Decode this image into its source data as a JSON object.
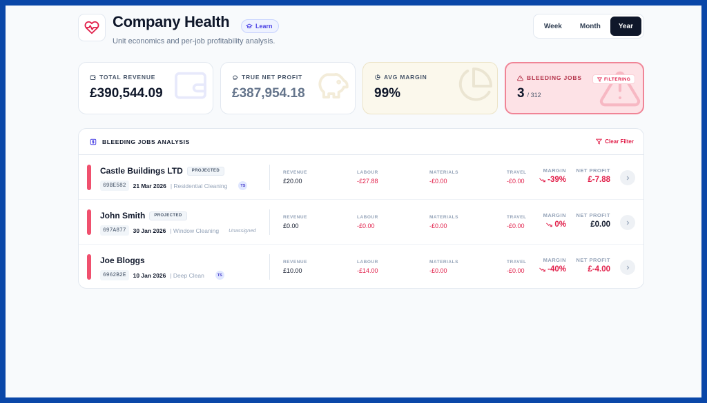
{
  "header": {
    "title": "Company Health",
    "learn_label": "Learn",
    "subtitle": "Unit economics and per-job profitability analysis.",
    "periods": [
      "Week",
      "Month",
      "Year"
    ],
    "active_period": "Year"
  },
  "cards": {
    "total_revenue": {
      "label": "TOTAL REVENUE",
      "value": "£390,544.09"
    },
    "net_profit": {
      "label": "TRUE NET PROFIT",
      "value": "£387,954.18"
    },
    "avg_margin": {
      "label": "AVG MARGIN",
      "value": "99%"
    },
    "bleeding_jobs": {
      "label": "BLEEDING JOBS",
      "value": "3",
      "total": "/ 312",
      "filter_badge": "FILTERING"
    }
  },
  "panel": {
    "title": "BLEEDING JOBS ANALYSIS",
    "clear_filter": "Clear Filter",
    "headers": {
      "revenue": "REVENUE",
      "labour": "LABOUR",
      "materials": "MATERIALS",
      "travel": "TRAVEL",
      "margin": "MARGIN",
      "net_profit": "NET PROFIT"
    },
    "rows": [
      {
        "name": "Castle Buildings LTD",
        "badge": "PROJECTED",
        "job_id": "69BE582",
        "date": "21 Mar 2026",
        "service": "| Residential Cleaning",
        "assignee": "TS",
        "revenue": "£20.00",
        "labour": "-£27.88",
        "materials": "-£0.00",
        "travel": "-£0.00",
        "margin": "-39%",
        "net_profit": "£-7.88"
      },
      {
        "name": "John Smith",
        "badge": "PROJECTED",
        "job_id": "697A877",
        "date": "30 Jan 2026",
        "service": "| Window Cleaning",
        "assignee": "Unassigned",
        "revenue": "£0.00",
        "labour": "-£0.00",
        "materials": "-£0.00",
        "travel": "-£0.00",
        "margin": "0%",
        "net_profit": "£0.00"
      },
      {
        "name": "Joe Bloggs",
        "badge": "",
        "job_id": "6962B2E",
        "date": "10 Jan 2026",
        "service": "| Deep Clean",
        "assignee": "TS",
        "revenue": "£10.00",
        "labour": "-£14.00",
        "materials": "-£0.00",
        "travel": "-£0.00",
        "margin": "-40%",
        "net_profit": "£-4.00"
      }
    ]
  },
  "colors": {
    "accent_red": "#e11d48",
    "bleed_bar": "#f0506e",
    "dark": "#0f172a",
    "indigo": "#4f46e5"
  },
  "icons": [
    "heart-pulse-icon",
    "graduation-cap-icon",
    "wallet-icon",
    "piggy-bank-icon",
    "pie-chart-icon",
    "warning-icon",
    "filter-icon",
    "dollar-square-icon",
    "trend-down-icon",
    "chevron-right-icon"
  ]
}
